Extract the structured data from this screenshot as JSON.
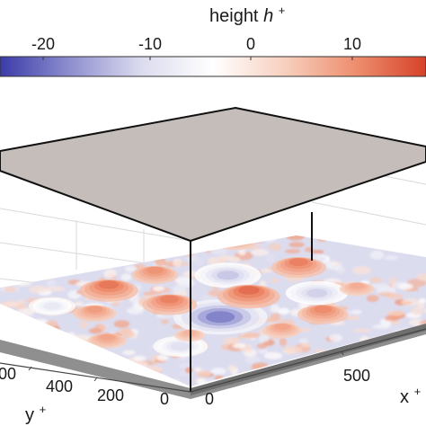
{
  "chart_data": {
    "type": "surface",
    "title": "",
    "colorbar": {
      "label_text": "height ",
      "label_symbol": "h",
      "label_superscript": "+",
      "range": [
        -28,
        18
      ],
      "ticks": [
        -20,
        -10,
        0,
        10
      ],
      "tick_labels": [
        "-20",
        "-10",
        "0",
        "10"
      ],
      "colormap": [
        "#3b3ba8",
        "#8f90cf",
        "#dcdcef",
        "#ffffff",
        "#f7d0bf",
        "#ee8f6f",
        "#d6422a"
      ]
    },
    "x_axis": {
      "label": "x",
      "superscript": "+",
      "ticks": [
        0,
        500
      ],
      "tick_labels": [
        "0",
        "500"
      ]
    },
    "y_axis": {
      "label": "y",
      "superscript": "+",
      "ticks": [
        0,
        200,
        400
      ],
      "tick_labels": [
        "0",
        "200",
        "400"
      ]
    },
    "top_wall_color": "#c4bdb9",
    "roughness_peaks": [
      {
        "x": 0.62,
        "y": 0.46,
        "h": 14
      },
      {
        "x": 0.38,
        "y": 0.58,
        "h": 12
      },
      {
        "x": 0.3,
        "y": 0.8,
        "h": 13
      },
      {
        "x": 0.48,
        "y": 0.78,
        "h": 10
      },
      {
        "x": 0.16,
        "y": 0.7,
        "h": 9
      },
      {
        "x": 0.74,
        "y": 0.22,
        "h": 11
      },
      {
        "x": 0.88,
        "y": 0.52,
        "h": 12
      },
      {
        "x": 0.55,
        "y": 0.2,
        "h": 8
      },
      {
        "x": 0.82,
        "y": 0.78,
        "h": 9
      },
      {
        "x": 0.05,
        "y": 0.5,
        "h": 8
      },
      {
        "x": 0.28,
        "y": 0.35,
        "h": 6
      },
      {
        "x": 0.95,
        "y": 0.3,
        "h": 7
      }
    ],
    "roughness_troughs": [
      {
        "x": 0.45,
        "y": 0.4,
        "h": -22
      },
      {
        "x": 0.66,
        "y": 0.62,
        "h": -15
      },
      {
        "x": 0.2,
        "y": 0.3,
        "h": -12
      },
      {
        "x": 0.82,
        "y": 0.35,
        "h": -14
      },
      {
        "x": 0.1,
        "y": 0.85,
        "h": -10
      }
    ]
  }
}
